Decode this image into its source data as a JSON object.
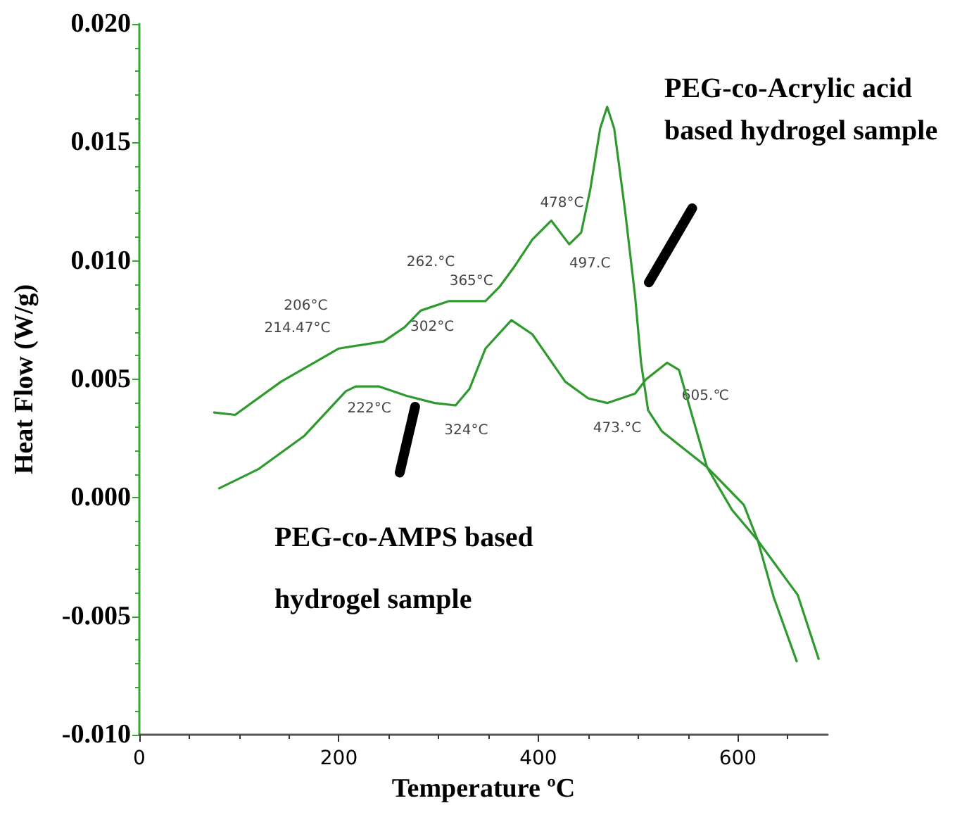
{
  "chart_data": {
    "type": "line",
    "xlabel": "Temperature ºC",
    "ylabel": "Heat Flow (W/g)",
    "xlim": [
      0,
      690
    ],
    "xticks": [
      0,
      200,
      400,
      600
    ],
    "ylim": [
      -0.01,
      0.02
    ],
    "yticks": [
      {
        "value": -0.01,
        "label": "-0.010"
      },
      {
        "value": -0.005,
        "label": "-0.005"
      },
      {
        "value": 0,
        "label": "0.000"
      },
      {
        "value": 0.005,
        "label": "0.005"
      },
      {
        "value": 0.01,
        "label": "0.010"
      },
      {
        "value": 0.015,
        "label": "0.015"
      },
      {
        "value": 0.02,
        "label": "0.020"
      }
    ],
    "grid": false,
    "legend": false,
    "marker": "none",
    "line_style": "solid",
    "series": [
      {
        "name": "PEG-co-Acrylic acid based hydrogel sample",
        "color": "#2e9a2e",
        "x": [
          75,
          96,
          142,
          200,
          245,
          266,
          282,
          310,
          347,
          361,
          375,
          394,
          413,
          431,
          443,
          452,
          462,
          469,
          476,
          487,
          497,
          503,
          510,
          524,
          548,
          569,
          606,
          620,
          660,
          681
        ],
        "values": [
          0.0036,
          0.0035,
          0.0049,
          0.0063,
          0.0066,
          0.0072,
          0.0079,
          0.0083,
          0.0083,
          0.0089,
          0.0097,
          0.0109,
          0.0117,
          0.0107,
          0.0112,
          0.013,
          0.0156,
          0.0165,
          0.0156,
          0.0121,
          0.0085,
          0.0057,
          0.0037,
          0.0028,
          0.002,
          0.0013,
          -0.0003,
          -0.0018,
          -0.0041,
          -0.0068
        ]
      },
      {
        "name": "PEG-co-AMPS based hydrogel sample",
        "color": "#2e9a2e",
        "x": [
          80,
          119,
          165,
          207,
          217,
          240,
          268,
          296,
          317,
          331,
          347,
          373,
          394,
          427,
          450,
          469,
          497,
          508,
          529,
          541,
          569,
          594,
          620,
          636,
          659
        ],
        "values": [
          0.0004,
          0.0012,
          0.0026,
          0.0045,
          0.0047,
          0.0047,
          0.0043,
          0.004,
          0.0039,
          0.0046,
          0.0063,
          0.0075,
          0.0069,
          0.0049,
          0.0042,
          0.004,
          0.0044,
          0.005,
          0.0057,
          0.0054,
          0.0013,
          -0.0005,
          -0.0018,
          -0.0042,
          -0.0069
        ]
      }
    ],
    "annotations": [
      {
        "text": "206°C",
        "x": 200,
        "y": 0.0063
      },
      {
        "text": "214.47°C",
        "x": 200,
        "y": 0.0063
      },
      {
        "text": "262.°C",
        "x": 282,
        "y": 0.0079
      },
      {
        "text": "302°C",
        "x": 266,
        "y": 0.0072
      },
      {
        "text": "365°C",
        "x": 325,
        "y": 0.0083
      },
      {
        "text": "478°C",
        "x": 413,
        "y": 0.0117
      },
      {
        "text": "497.C",
        "x": 431,
        "y": 0.0107
      },
      {
        "text": "222°C",
        "x": 217,
        "y": 0.0047
      },
      {
        "text": "324°C",
        "x": 317,
        "y": 0.0039
      },
      {
        "text": "473.°C",
        "x": 469,
        "y": 0.004
      },
      {
        "text": "605.℃",
        "x": 510,
        "y": 0.0037
      }
    ]
  }
}
